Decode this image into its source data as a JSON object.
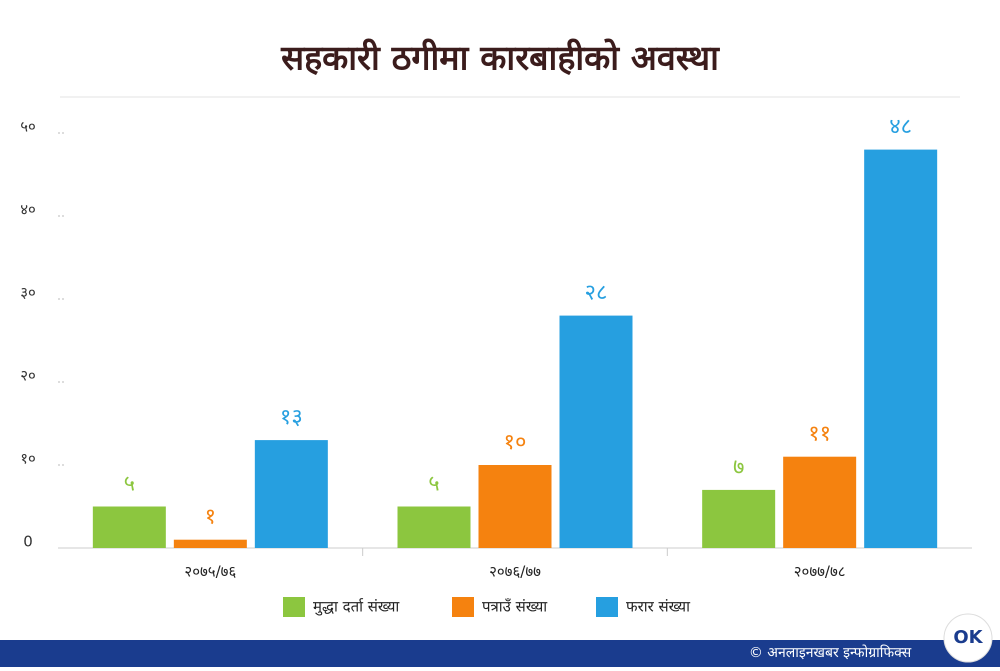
{
  "chart_data": {
    "type": "bar",
    "title": "सहकारी ठगीमा कारबाहीको अवस्था",
    "categories": [
      "२०७५/७६",
      "२०७६/७७",
      "२०७७/७८"
    ],
    "series": [
      {
        "name": "मुद्धा दर्ता संख्या",
        "color": "#8cc63f",
        "values": [
          5,
          5,
          7
        ],
        "value_labels": [
          "५",
          "५",
          "७"
        ]
      },
      {
        "name": "पत्राउँ संख्या",
        "color": "#f5820f",
        "values": [
          1,
          10,
          11
        ],
        "value_labels": [
          "१",
          "१०",
          "११"
        ]
      },
      {
        "name": "फरार संख्या",
        "color": "#269fe0",
        "values": [
          13,
          28,
          48
        ],
        "value_labels": [
          "१३",
          "२८",
          "४८"
        ]
      }
    ],
    "ylim": [
      0,
      50
    ],
    "yticks": [
      0,
      {
        "value": 10,
        "label": "१०"
      },
      {
        "value": 20,
        "label": "२०"
      },
      {
        "value": 30,
        "label": "३०"
      },
      {
        "value": 40,
        "label": "४०"
      },
      {
        "value": 50,
        "label": "५०"
      }
    ],
    "legend": "bottom",
    "footer": "© अनलाइनखबर इन्फोग्राफिक्स",
    "logo": "OK"
  }
}
